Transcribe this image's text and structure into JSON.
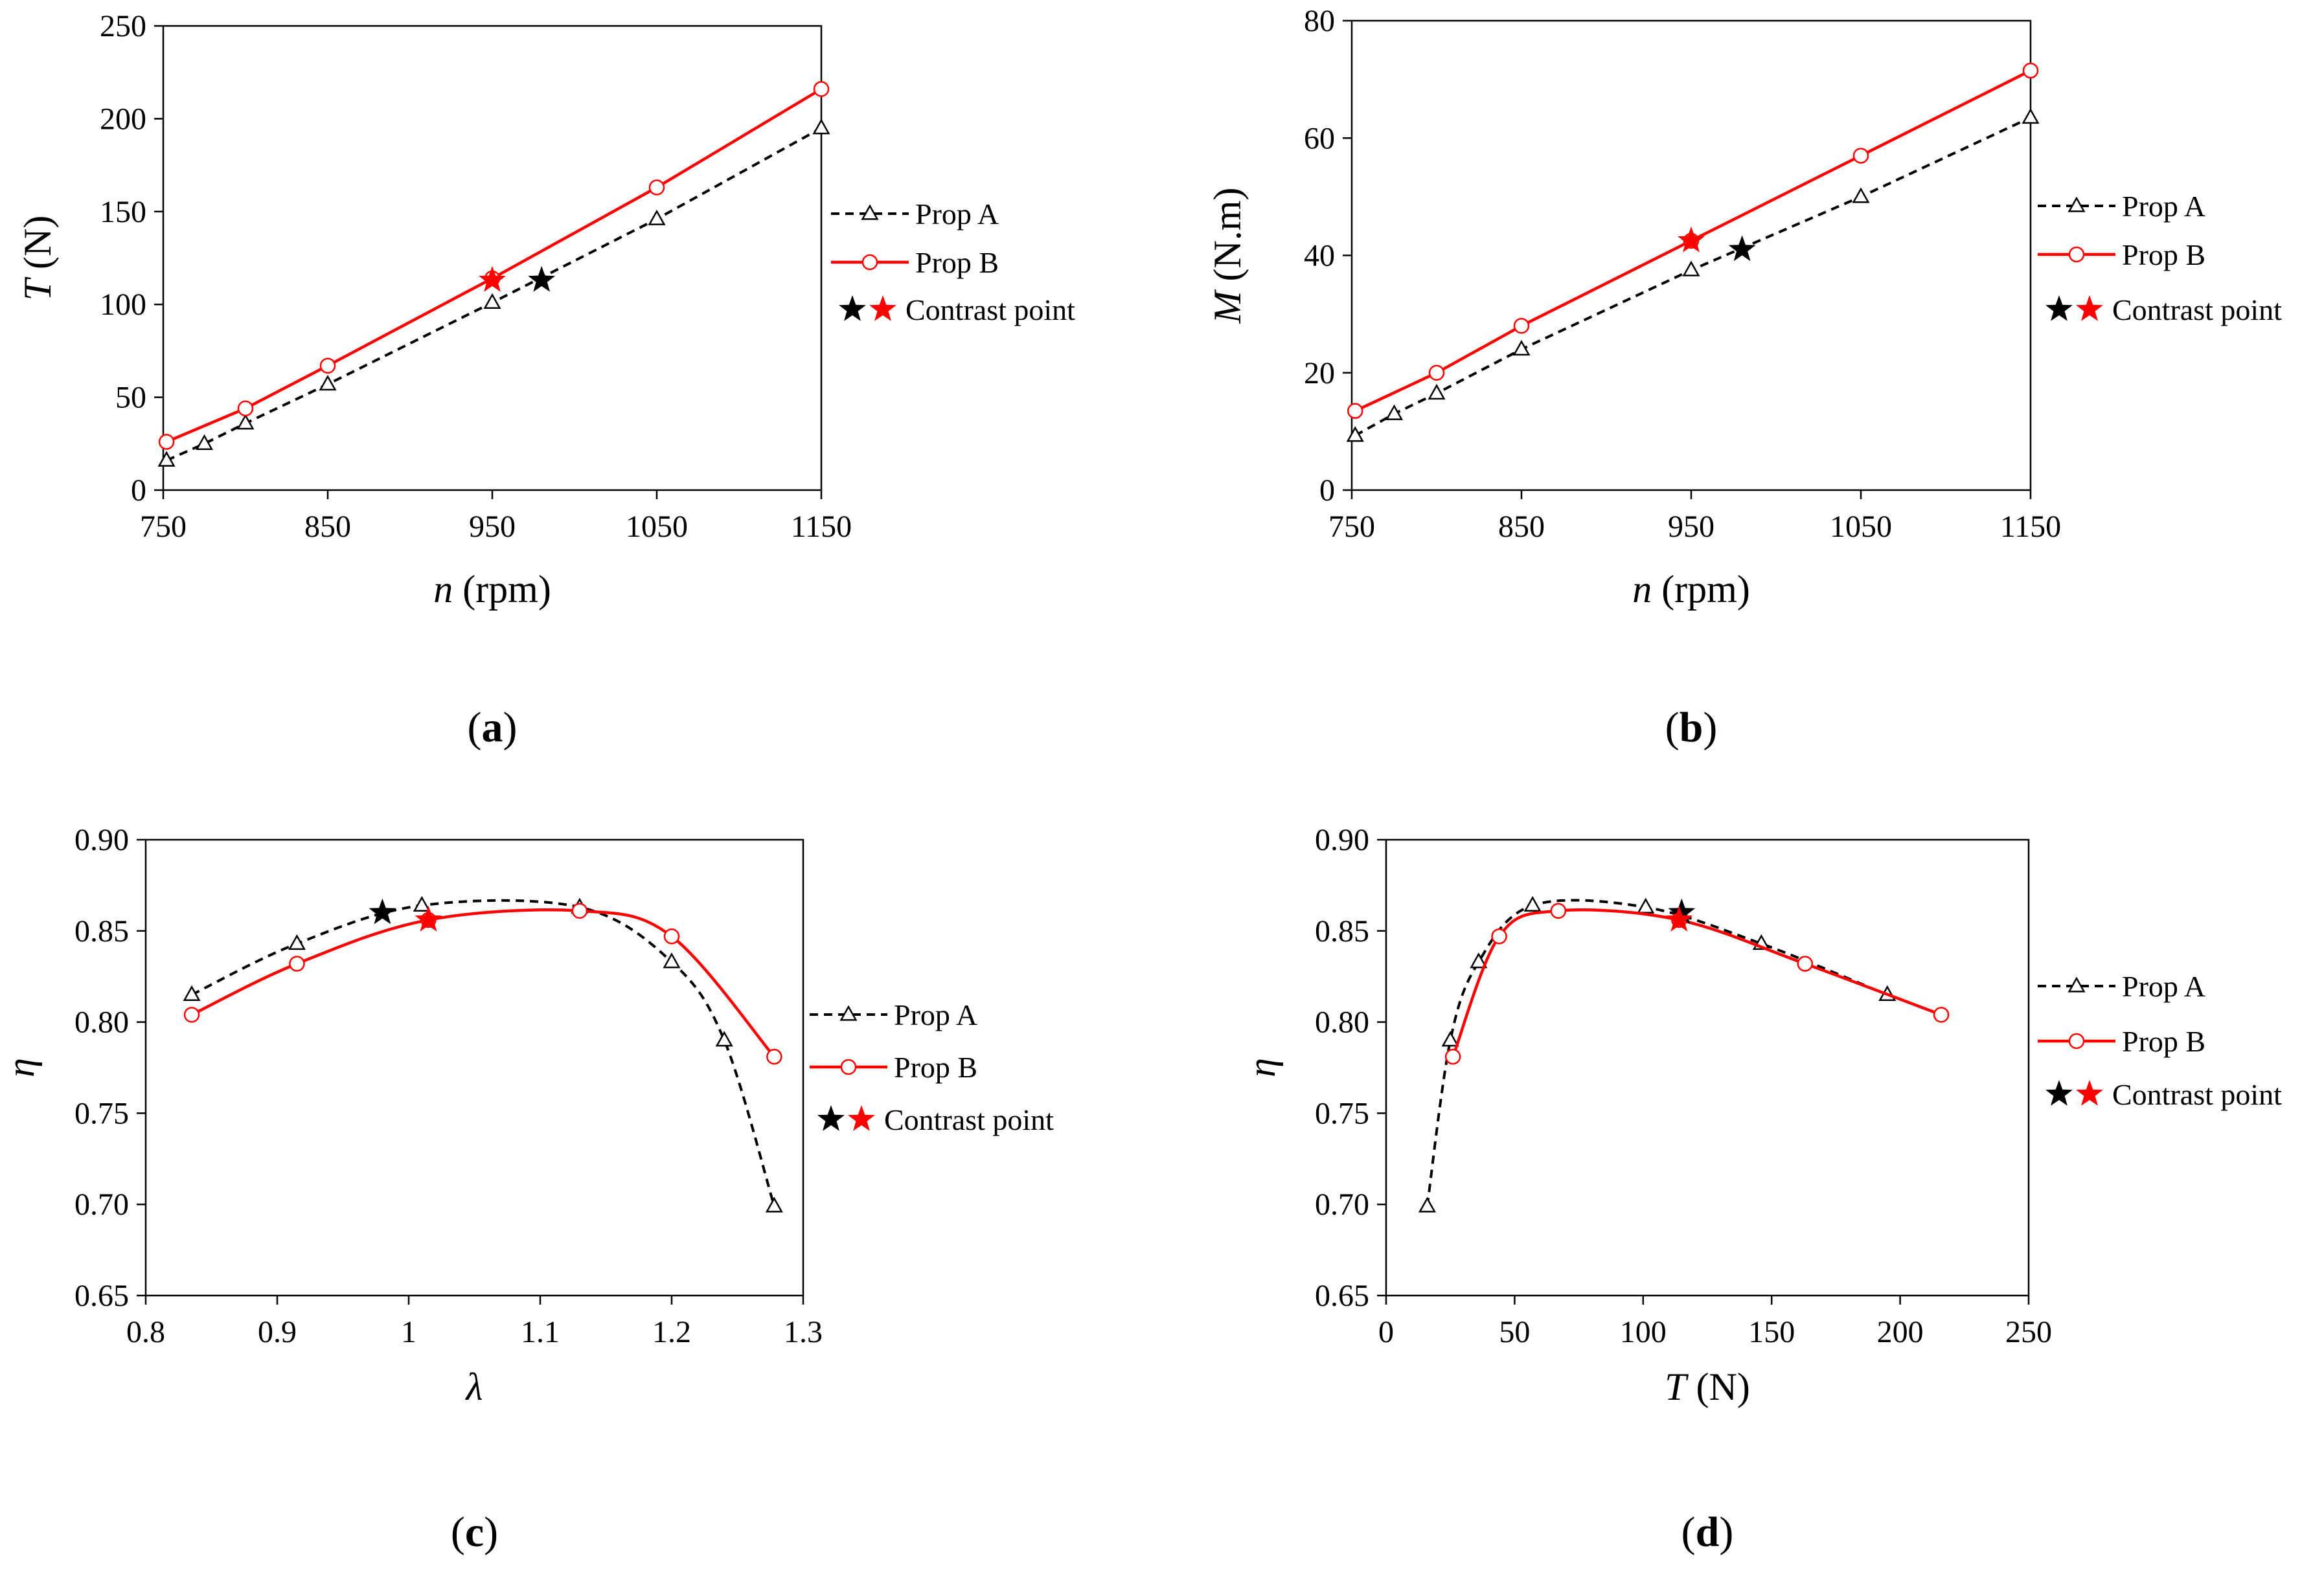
{
  "chart_data": [
    {
      "id": "a",
      "caption": "a",
      "type": "line",
      "xlabel": {
        "var": "n",
        "unit": "(rpm)"
      },
      "ylabel": {
        "var": "T",
        "unit": "(N)"
      },
      "xlim": [
        750,
        1150
      ],
      "ylim": [
        0,
        250
      ],
      "xticks": [
        "750",
        "850",
        "950",
        "1050",
        "1150"
      ],
      "xtickvals": [
        750,
        850,
        950,
        1050,
        1150
      ],
      "yticks": [
        "0",
        "50",
        "100",
        "150",
        "200",
        "250"
      ],
      "ytickvals": [
        0,
        50,
        100,
        150,
        200,
        250
      ],
      "series": [
        {
          "name": "Prop A",
          "color": "#000000",
          "dash": true,
          "marker": "triangle",
          "smooth": false,
          "x": [
            752,
            775,
            800,
            850,
            950,
            1050,
            1150
          ],
          "y": [
            16,
            25,
            36,
            57,
            101,
            146,
            195
          ]
        },
        {
          "name": "Prop B",
          "color": "#ff0000",
          "dash": false,
          "marker": "circle",
          "smooth": false,
          "x": [
            752,
            800,
            850,
            950,
            1050,
            1150
          ],
          "y": [
            26,
            44,
            67,
            114,
            163,
            216
          ]
        }
      ],
      "contrast": [
        {
          "x": 980,
          "y": 113,
          "color": "#000000"
        },
        {
          "x": 950,
          "y": 113,
          "color": "#ff0000"
        }
      ],
      "legend_labels": [
        "Prop A",
        "Prop B",
        "Contrast point"
      ]
    },
    {
      "id": "b",
      "caption": "b",
      "type": "line",
      "xlabel": {
        "var": "n",
        "unit": "(rpm)"
      },
      "ylabel": {
        "var": "M",
        "unit": "(N.m)"
      },
      "xlim": [
        750,
        1150
      ],
      "ylim": [
        0,
        80
      ],
      "xticks": [
        "750",
        "850",
        "950",
        "1050",
        "1150"
      ],
      "xtickvals": [
        750,
        850,
        950,
        1050,
        1150
      ],
      "yticks": [
        "0",
        "20",
        "40",
        "60",
        "80"
      ],
      "ytickvals": [
        0,
        20,
        40,
        60,
        80
      ],
      "series": [
        {
          "name": "Prop A",
          "color": "#000000",
          "dash": true,
          "marker": "triangle",
          "smooth": false,
          "x": [
            752,
            775,
            800,
            850,
            950,
            1050,
            1150
          ],
          "y": [
            9.3,
            13,
            16.5,
            24,
            37.5,
            50,
            63.5
          ]
        },
        {
          "name": "Prop B",
          "color": "#ff0000",
          "dash": false,
          "marker": "circle",
          "smooth": false,
          "x": [
            752,
            800,
            850,
            950,
            1050,
            1150
          ],
          "y": [
            13.5,
            20,
            28,
            42.5,
            57,
            71.5
          ]
        }
      ],
      "contrast": [
        {
          "x": 980,
          "y": 41,
          "color": "#000000"
        },
        {
          "x": 950,
          "y": 42.5,
          "color": "#ff0000"
        }
      ],
      "legend_labels": [
        "Prop A",
        "Prop B",
        "Contrast point"
      ]
    },
    {
      "id": "c",
      "caption": "c",
      "type": "line",
      "xlabel": {
        "var": "λ",
        "unit": ""
      },
      "ylabel": {
        "var": "η",
        "unit": ""
      },
      "xlim": [
        0.8,
        1.3
      ],
      "ylim": [
        0.65,
        0.9
      ],
      "xticks": [
        "0.8",
        "0.9",
        "1",
        "1.1",
        "1.2",
        "1.3"
      ],
      "xtickvals": [
        0.8,
        0.9,
        1.0,
        1.1,
        1.2,
        1.3
      ],
      "yticks": [
        "0.65",
        "0.70",
        "0.75",
        "0.80",
        "0.85",
        "0.90"
      ],
      "ytickvals": [
        0.65,
        0.7,
        0.75,
        0.8,
        0.85,
        0.9
      ],
      "series": [
        {
          "name": "Prop A",
          "color": "#000000",
          "dash": true,
          "marker": "triangle",
          "smooth": true,
          "x": [
            0.835,
            0.915,
            1.01,
            1.13,
            1.2,
            1.24,
            1.278
          ],
          "y": [
            0.815,
            0.843,
            0.864,
            0.863,
            0.833,
            0.79,
            0.699
          ]
        },
        {
          "name": "Prop B",
          "color": "#ff0000",
          "dash": false,
          "marker": "circle",
          "smooth": true,
          "x": [
            0.835,
            0.915,
            1.015,
            1.13,
            1.2,
            1.278
          ],
          "y": [
            0.804,
            0.832,
            0.856,
            0.861,
            0.847,
            0.781
          ]
        }
      ],
      "contrast": [
        {
          "x": 0.98,
          "y": 0.86,
          "color": "#000000"
        },
        {
          "x": 1.015,
          "y": 0.856,
          "color": "#ff0000"
        }
      ],
      "legend_labels": [
        "Prop A",
        "Prop B",
        "Contrast point"
      ]
    },
    {
      "id": "d",
      "caption": "d",
      "type": "line",
      "xlabel": {
        "var": "T",
        "unit": "(N)"
      },
      "ylabel": {
        "var": "η",
        "unit": ""
      },
      "xlim": [
        0,
        250
      ],
      "ylim": [
        0.65,
        0.9
      ],
      "xticks": [
        "0",
        "50",
        "100",
        "150",
        "200",
        "250"
      ],
      "xtickvals": [
        0,
        50,
        100,
        150,
        200,
        250
      ],
      "yticks": [
        "0.65",
        "0.70",
        "0.75",
        "0.80",
        "0.85",
        "0.90"
      ],
      "ytickvals": [
        0.65,
        0.7,
        0.75,
        0.8,
        0.85,
        0.9
      ],
      "series": [
        {
          "name": "Prop A",
          "color": "#000000",
          "dash": true,
          "marker": "triangle",
          "smooth": true,
          "x": [
            16,
            25,
            36,
            57,
            101,
            146,
            195
          ],
          "y": [
            0.699,
            0.79,
            0.833,
            0.864,
            0.863,
            0.843,
            0.815
          ]
        },
        {
          "name": "Prop B",
          "color": "#ff0000",
          "dash": false,
          "marker": "circle",
          "smooth": true,
          "x": [
            26,
            44,
            67,
            114,
            163,
            216
          ],
          "y": [
            0.781,
            0.847,
            0.861,
            0.856,
            0.832,
            0.804
          ]
        }
      ],
      "contrast": [
        {
          "x": 115,
          "y": 0.86,
          "color": "#000000"
        },
        {
          "x": 114,
          "y": 0.856,
          "color": "#ff0000"
        }
      ],
      "legend_labels": [
        "Prop A",
        "Prop B",
        "Contrast point"
      ]
    }
  ]
}
